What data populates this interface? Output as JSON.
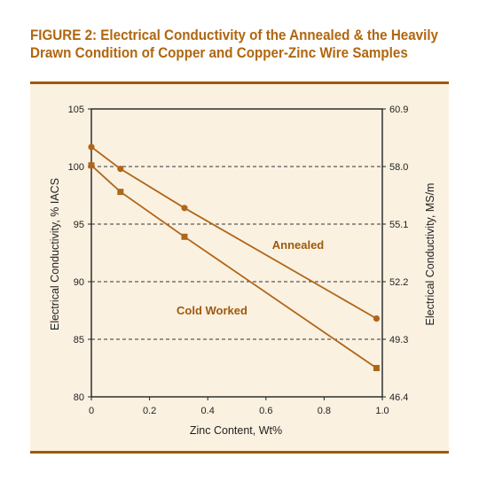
{
  "figure": {
    "title_line1": "FIGURE 2: Electrical Conductivity of the Annealed & the Heavily",
    "title_line2": "Drawn Condition of Copper and Copper-Zinc Wire Samples"
  },
  "colors": {
    "accent": "#b0660f",
    "series": "#b0661a",
    "panel_bg": "#fbf1e1",
    "rule": "#9c5a0e"
  },
  "chart_data": {
    "type": "line",
    "xlabel": "Zinc Content, Wt%",
    "ylabel": "Electrical Conductivity, % IACS",
    "y2label": "Electrical Conductivity, MS/m",
    "xlim": [
      0,
      1.0
    ],
    "ylim": [
      80,
      105
    ],
    "x_ticks": [
      "0",
      "0.2",
      "0.4",
      "0.6",
      "0.8",
      "1.0"
    ],
    "y_ticks": [
      "80",
      "85",
      "90",
      "95",
      "100",
      "105"
    ],
    "y2_ticks": [
      "46.4",
      "49.3",
      "52.2",
      "55.1",
      "58.0",
      "60.9"
    ],
    "grid": "dashed horizontal at 85, 90, 95, 100",
    "series": [
      {
        "name": "Annealed",
        "marker": "circle",
        "x": [
          0,
          0.1,
          0.32,
          0.98
        ],
        "y": [
          101.7,
          99.8,
          96.4,
          86.8
        ]
      },
      {
        "name": "Cold Worked",
        "marker": "square",
        "x": [
          0,
          0.1,
          0.32,
          0.98
        ],
        "y": [
          100.1,
          97.8,
          93.9,
          82.5
        ]
      }
    ]
  }
}
